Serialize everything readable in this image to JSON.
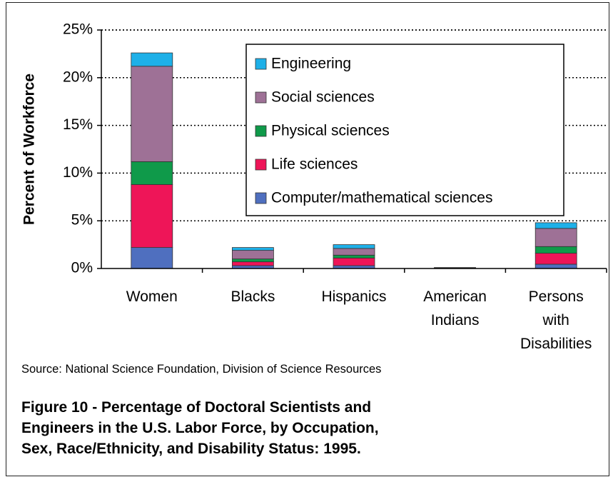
{
  "chart_data": {
    "type": "stacked_bar",
    "ylabel": "Percent of Workforce",
    "categories": [
      "Women",
      "Blacks",
      "Hispanics",
      "American Indians",
      "Persons with Disabilities"
    ],
    "series": [
      {
        "name": "Computer/mathematical sciences",
        "color": "#4f6fbf",
        "values": [
          2.2,
          0.3,
          0.3,
          0.02,
          0.45
        ]
      },
      {
        "name": "Life sciences",
        "color": "#ee1558",
        "values": [
          6.6,
          0.4,
          0.8,
          0.03,
          1.15
        ]
      },
      {
        "name": "Physical sciences",
        "color": "#0f9a4a",
        "values": [
          2.4,
          0.3,
          0.3,
          0.01,
          0.7
        ]
      },
      {
        "name": "Social sciences",
        "color": "#9e7196",
        "values": [
          10.0,
          0.9,
          0.7,
          0.03,
          1.9
        ]
      },
      {
        "name": "Engineering",
        "color": "#1eb0e8",
        "values": [
          1.4,
          0.3,
          0.4,
          0.01,
          0.6
        ]
      }
    ],
    "ylim": [
      0,
      25
    ],
    "yticks": [
      {
        "value": 0,
        "label": "0%"
      },
      {
        "value": 5,
        "label": "5%"
      },
      {
        "value": 10,
        "label": "10%"
      },
      {
        "value": 15,
        "label": "15%"
      },
      {
        "value": 20,
        "label": "20%"
      },
      {
        "value": 25,
        "label": "25%"
      }
    ],
    "grid": true,
    "legend": "upper right",
    "source": "Source: National Science Foundation, Division of Science Resources",
    "caption": "Figure 10 - Percentage of Doctoral Scientists and Engineers in the U.S. Labor Force, by Occupation, Sex, Race/Ethnicity, and Disability Status: 1995."
  }
}
